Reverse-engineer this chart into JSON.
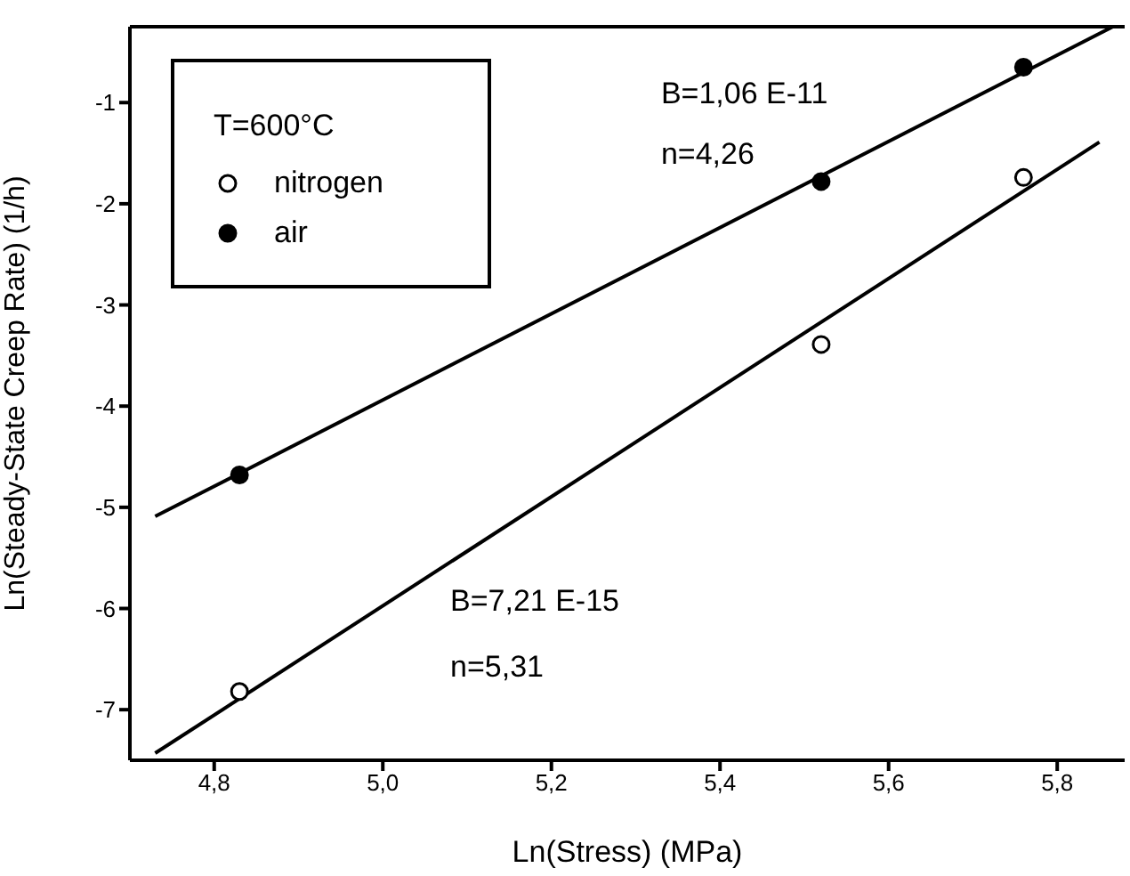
{
  "chart_data": {
    "type": "scatter",
    "xlabel": "Ln(Stress) (MPa)",
    "ylabel": "Ln(Steady-State Creep Rate) (1/h)",
    "legend_title": "T=600°C",
    "legend": "top left",
    "marker": "circle",
    "xlim": [
      4.7,
      5.88
    ],
    "xticks": [
      {
        "value": 4.8,
        "label": "4,8"
      },
      {
        "value": 5.0,
        "label": "5,0"
      },
      {
        "value": 5.2,
        "label": "5,2"
      },
      {
        "value": 5.4,
        "label": "5,4"
      },
      {
        "value": 5.6,
        "label": "5,6"
      },
      {
        "value": 5.8,
        "label": "5,8"
      }
    ],
    "ylim": [
      -7.5,
      -0.25
    ],
    "yticks": [
      -7,
      -6,
      -5,
      -4,
      -3,
      -2,
      -1
    ],
    "series": [
      {
        "name": "nitrogen",
        "type": "scatter",
        "color": "#ffffff",
        "x": [
          4.83,
          5.52,
          5.76
        ],
        "values": [
          -6.82,
          -3.39,
          -1.74
        ]
      },
      {
        "name": "air",
        "type": "scatter",
        "color": "#000000",
        "x": [
          4.83,
          5.52,
          5.76
        ],
        "values": [
          -4.68,
          -1.78,
          -0.65
        ]
      },
      {
        "type": "line",
        "color": "#000000",
        "marker": "none",
        "x": [
          4.73,
          5.866
        ],
        "values": [
          -5.09,
          -0.25
        ]
      },
      {
        "type": "line",
        "color": "#000000",
        "marker": "none",
        "x": [
          4.73,
          5.85
        ],
        "values": [
          -7.43,
          -1.39
        ]
      }
    ],
    "annotations": [
      "B=1,06 E-11",
      "n=4,26",
      "B=7,21 E-15",
      "n=5,31"
    ]
  }
}
